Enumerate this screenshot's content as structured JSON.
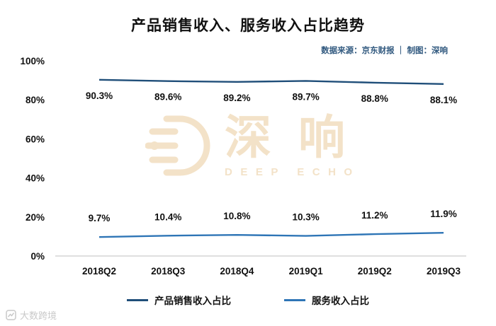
{
  "header": {
    "title": "产品销售收入、服务收入占比趋势",
    "source_note": "数据来源：京东财报 ｜ 制图：深响"
  },
  "chart_data": {
    "type": "line",
    "title": "产品销售收入、服务收入占比趋势",
    "categories": [
      "2018Q2",
      "2018Q3",
      "2018Q4",
      "2019Q1",
      "2019Q2",
      "2019Q3"
    ],
    "series": [
      {
        "name": "产品销售收入占比",
        "color": "#1f4e79",
        "values": [
          90.3,
          89.6,
          89.2,
          89.7,
          88.8,
          88.1
        ],
        "data_label_position": "below"
      },
      {
        "name": "服务收入占比",
        "color": "#2e75b6",
        "values": [
          9.7,
          10.4,
          10.8,
          10.3,
          11.2,
          11.9
        ],
        "data_label_position": "above"
      }
    ],
    "ylim": [
      0,
      100
    ],
    "y_tick_labels": [
      "0%",
      "20%",
      "40%",
      "60%",
      "80%",
      "100%"
    ],
    "grid": false,
    "data_labels": true,
    "legend_position": "bottom"
  },
  "watermark": {
    "cn": "深响",
    "en": "DEEP ECHO",
    "color": "#f3e2c8"
  },
  "footer": {
    "watermark_text": "大数跨境"
  }
}
